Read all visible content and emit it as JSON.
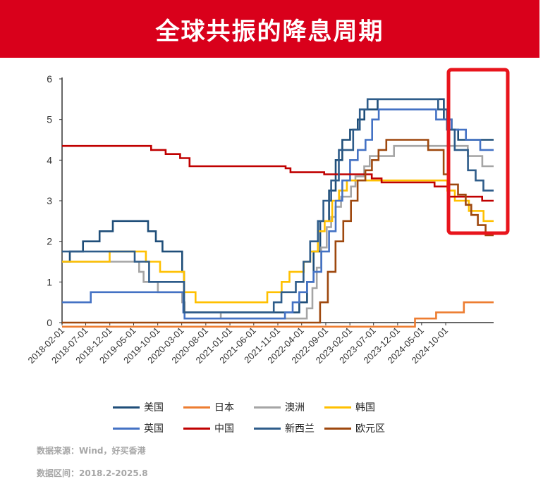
{
  "header": {
    "title": "全球共振的降息周期"
  },
  "footer": {
    "source": "数据来源：Wind，好买香港",
    "range": "数据区间：2018.2-2025.8"
  },
  "highlight_color": "#e8141c",
  "chart_data": {
    "type": "line",
    "title": "",
    "xlabel": "",
    "ylabel": "",
    "ylim": [
      0,
      6
    ],
    "y_ticks": [
      "0",
      "1",
      "2",
      "3",
      "4",
      "5",
      "6"
    ],
    "x_ticks": [
      "2018-02-01",
      "2018-07-01",
      "2018-12-01",
      "2019-05-01",
      "2019-10-01",
      "2020-03-01",
      "2020-08-01",
      "2021-01-01",
      "2021-06-01",
      "2021-11-01",
      "2022-04-01",
      "2022-09-01",
      "2023-02-01",
      "2023-07-01",
      "2023-12-01",
      "2024-05-01",
      "2024-10-01"
    ],
    "x_range": [
      "2018-02-01",
      "2025-08-01"
    ],
    "grid": false,
    "legend_position": "bottom",
    "series": [
      {
        "name": "美国",
        "color": "#1f4e79",
        "points": [
          [
            "2018-02-01",
            1.5
          ],
          [
            "2018-03-22",
            1.75
          ],
          [
            "2018-06-14",
            2.0
          ],
          [
            "2018-09-27",
            2.25
          ],
          [
            "2018-12-20",
            2.5
          ],
          [
            "2019-08-01",
            2.25
          ],
          [
            "2019-09-19",
            2.0
          ],
          [
            "2019-10-31",
            1.75
          ],
          [
            "2020-03-04",
            1.25
          ],
          [
            "2020-03-16",
            0.25
          ],
          [
            "2022-03-17",
            0.5
          ],
          [
            "2022-05-05",
            1.0
          ],
          [
            "2022-06-16",
            1.75
          ],
          [
            "2022-07-28",
            2.5
          ],
          [
            "2022-09-22",
            3.25
          ],
          [
            "2022-11-03",
            4.0
          ],
          [
            "2022-12-15",
            4.5
          ],
          [
            "2023-02-02",
            4.75
          ],
          [
            "2023-03-23",
            5.0
          ],
          [
            "2023-05-04",
            5.25
          ],
          [
            "2023-07-27",
            5.5
          ],
          [
            "2024-09-19",
            5.0
          ],
          [
            "2024-11-08",
            4.75
          ],
          [
            "2024-12-19",
            4.5
          ],
          [
            "2025-08-01",
            4.5
          ]
        ]
      },
      {
        "name": "日本",
        "color": "#ed7d31",
        "points": [
          [
            "2018-02-01",
            -0.1
          ],
          [
            "2024-03-20",
            0.1
          ],
          [
            "2024-08-01",
            0.25
          ],
          [
            "2025-01-24",
            0.5
          ],
          [
            "2025-08-01",
            0.5
          ]
        ]
      },
      {
        "name": "澳洲",
        "color": "#a5a5a5",
        "points": [
          [
            "2018-02-01",
            1.5
          ],
          [
            "2019-06-05",
            1.25
          ],
          [
            "2019-07-03",
            1.0
          ],
          [
            "2019-10-02",
            0.75
          ],
          [
            "2020-03-04",
            0.5
          ],
          [
            "2020-03-20",
            0.25
          ],
          [
            "2020-11-04",
            0.1
          ],
          [
            "2022-05-04",
            0.35
          ],
          [
            "2022-06-08",
            0.85
          ],
          [
            "2022-07-06",
            1.35
          ],
          [
            "2022-08-03",
            1.85
          ],
          [
            "2022-09-07",
            2.35
          ],
          [
            "2022-10-05",
            2.6
          ],
          [
            "2022-11-02",
            2.85
          ],
          [
            "2022-12-07",
            3.1
          ],
          [
            "2023-02-08",
            3.35
          ],
          [
            "2023-03-08",
            3.6
          ],
          [
            "2023-05-03",
            3.85
          ],
          [
            "2023-06-07",
            4.1
          ],
          [
            "2023-11-08",
            4.35
          ],
          [
            "2025-02-18",
            4.1
          ],
          [
            "2025-05-21",
            3.85
          ],
          [
            "2025-08-01",
            3.85
          ]
        ]
      },
      {
        "name": "韩国",
        "color": "#ffc000",
        "points": [
          [
            "2018-02-01",
            1.5
          ],
          [
            "2018-11-30",
            1.75
          ],
          [
            "2019-07-18",
            1.5
          ],
          [
            "2019-10-16",
            1.25
          ],
          [
            "2020-03-16",
            0.75
          ],
          [
            "2020-05-28",
            0.5
          ],
          [
            "2021-08-26",
            0.75
          ],
          [
            "2021-11-25",
            1.0
          ],
          [
            "2022-01-14",
            1.25
          ],
          [
            "2022-04-14",
            1.5
          ],
          [
            "2022-05-26",
            1.75
          ],
          [
            "2022-07-13",
            2.25
          ],
          [
            "2022-08-25",
            2.5
          ],
          [
            "2022-10-12",
            3.0
          ],
          [
            "2022-11-24",
            3.25
          ],
          [
            "2023-01-13",
            3.5
          ],
          [
            "2024-10-11",
            3.25
          ],
          [
            "2024-11-28",
            3.0
          ],
          [
            "2025-02-25",
            2.75
          ],
          [
            "2025-05-29",
            2.5
          ],
          [
            "2025-08-01",
            2.5
          ]
        ]
      },
      {
        "name": "英国",
        "color": "#4472c4",
        "points": [
          [
            "2018-02-01",
            0.5
          ],
          [
            "2018-08-02",
            0.75
          ],
          [
            "2020-03-11",
            0.25
          ],
          [
            "2020-03-19",
            0.1
          ],
          [
            "2021-12-16",
            0.25
          ],
          [
            "2022-02-03",
            0.5
          ],
          [
            "2022-03-17",
            0.75
          ],
          [
            "2022-05-05",
            1.0
          ],
          [
            "2022-06-16",
            1.25
          ],
          [
            "2022-08-04",
            1.75
          ],
          [
            "2022-09-22",
            2.25
          ],
          [
            "2022-11-03",
            3.0
          ],
          [
            "2022-12-15",
            3.5
          ],
          [
            "2023-02-02",
            4.0
          ],
          [
            "2023-03-23",
            4.25
          ],
          [
            "2023-05-11",
            4.5
          ],
          [
            "2023-06-22",
            5.0
          ],
          [
            "2023-08-03",
            5.25
          ],
          [
            "2024-08-01",
            5.0
          ],
          [
            "2024-11-07",
            4.75
          ],
          [
            "2025-02-06",
            4.5
          ],
          [
            "2025-05-08",
            4.25
          ],
          [
            "2025-08-01",
            4.25
          ]
        ]
      },
      {
        "name": "中国",
        "color": "#c00000",
        "points": [
          [
            "2018-02-01",
            4.35
          ],
          [
            "2019-08-20",
            4.25
          ],
          [
            "2019-11-20",
            4.15
          ],
          [
            "2020-02-20",
            4.05
          ],
          [
            "2020-04-20",
            3.85
          ],
          [
            "2021-12-20",
            3.8
          ],
          [
            "2022-01-20",
            3.7
          ],
          [
            "2022-08-22",
            3.65
          ],
          [
            "2023-06-20",
            3.55
          ],
          [
            "2023-08-21",
            3.45
          ],
          [
            "2024-07-22",
            3.35
          ],
          [
            "2024-10-21",
            3.1
          ],
          [
            "2025-05-20",
            3.0
          ],
          [
            "2025-08-01",
            3.0
          ]
        ]
      },
      {
        "name": "新西兰",
        "color": "#2e5c8a",
        "points": [
          [
            "2018-02-01",
            1.75
          ],
          [
            "2019-05-08",
            1.5
          ],
          [
            "2019-08-07",
            1.0
          ],
          [
            "2020-03-16",
            0.25
          ],
          [
            "2021-10-06",
            0.5
          ],
          [
            "2021-11-24",
            0.75
          ],
          [
            "2022-02-23",
            1.0
          ],
          [
            "2022-04-13",
            1.5
          ],
          [
            "2022-05-25",
            2.0
          ],
          [
            "2022-07-13",
            2.5
          ],
          [
            "2022-08-17",
            3.0
          ],
          [
            "2022-10-05",
            3.5
          ],
          [
            "2022-11-23",
            4.25
          ],
          [
            "2023-02-22",
            4.75
          ],
          [
            "2023-04-05",
            5.25
          ],
          [
            "2023-05-24",
            5.5
          ],
          [
            "2024-08-14",
            5.25
          ],
          [
            "2024-10-09",
            4.75
          ],
          [
            "2024-11-27",
            4.25
          ],
          [
            "2025-02-19",
            3.75
          ],
          [
            "2025-04-09",
            3.5
          ],
          [
            "2025-05-28",
            3.25
          ],
          [
            "2025-08-01",
            3.25
          ]
        ]
      },
      {
        "name": "欧元区",
        "color": "#9e480e",
        "points": [
          [
            "2018-02-01",
            0.0
          ],
          [
            "2022-07-27",
            0.5
          ],
          [
            "2022-09-14",
            1.25
          ],
          [
            "2022-11-02",
            2.0
          ],
          [
            "2022-12-21",
            2.5
          ],
          [
            "2023-02-08",
            3.0
          ],
          [
            "2023-03-22",
            3.5
          ],
          [
            "2023-05-10",
            3.75
          ],
          [
            "2023-06-21",
            4.0
          ],
          [
            "2023-08-02",
            4.25
          ],
          [
            "2023-09-20",
            4.5
          ],
          [
            "2024-06-12",
            4.25
          ],
          [
            "2024-09-18",
            3.65
          ],
          [
            "2024-10-23",
            3.4
          ],
          [
            "2024-12-18",
            3.15
          ],
          [
            "2025-02-05",
            2.9
          ],
          [
            "2025-03-12",
            2.65
          ],
          [
            "2025-04-23",
            2.4
          ],
          [
            "2025-06-11",
            2.15
          ],
          [
            "2025-08-01",
            2.15
          ]
        ]
      }
    ]
  }
}
